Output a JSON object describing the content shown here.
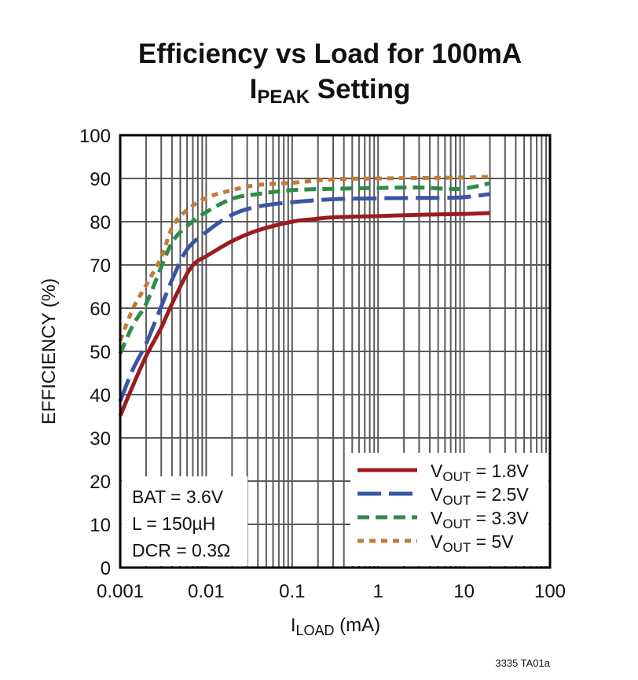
{
  "chart_data": {
    "type": "line",
    "title": {
      "line1": "Efficiency vs Load for 100mA",
      "line2_main": "I",
      "line2_sub": "PEAK",
      "line2_rest": " Setting"
    },
    "xlabel": {
      "main": "I",
      "sub": "LOAD",
      "rest": " (mA)"
    },
    "ylabel": "EFFICIENCY (%)",
    "x_scale": "log",
    "xlim": [
      0.001,
      100
    ],
    "ylim": [
      0,
      100
    ],
    "grid": true,
    "x_ticks": [
      "0.001",
      "0.01",
      "0.1",
      "1",
      "10",
      "100"
    ],
    "x_tick_values": [
      0.001,
      0.01,
      0.1,
      1,
      10,
      100
    ],
    "y_ticks": [
      "0",
      "10",
      "20",
      "30",
      "40",
      "50",
      "60",
      "70",
      "80",
      "90",
      "100"
    ],
    "legend_position": "bottom-right",
    "annotations": [
      "BAT = 3.6V",
      "L = 150µH",
      "DCR = 0.3Ω"
    ],
    "footnote": "3335 TA01a",
    "series": [
      {
        "label_main": "V",
        "label_sub": "OUT",
        "label_rest": " = 1.8V",
        "color": "#9b1c20",
        "style": "solid",
        "x": [
          0.001,
          0.0014,
          0.002,
          0.003,
          0.004,
          0.006,
          0.0077,
          0.01,
          0.02,
          0.04,
          0.1,
          0.18,
          0.3,
          1,
          3,
          10,
          20
        ],
        "y": [
          35.1,
          42,
          48.9,
          55.5,
          61,
          68,
          70.7,
          72,
          75.5,
          78,
          80,
          80.6,
          81,
          81.3,
          81.6,
          81.8,
          82
        ]
      },
      {
        "label_main": "V",
        "label_sub": "OUT",
        "label_rest": " = 2.5V",
        "color": "#3a55a6",
        "style": "long-dash",
        "x": [
          0.001,
          0.0014,
          0.002,
          0.003,
          0.0041,
          0.006,
          0.01,
          0.02,
          0.04,
          0.1,
          0.3,
          1,
          3,
          9,
          20
        ],
        "y": [
          38.5,
          45.8,
          51.8,
          60.4,
          67,
          73.6,
          77.6,
          81.6,
          83.5,
          84.5,
          85.2,
          85.4,
          85.5,
          85.6,
          86.4
        ]
      },
      {
        "label_main": "V",
        "label_sub": "OUT",
        "label_rest": " = 3.3V",
        "color": "#2e8b4a",
        "style": "dash",
        "x": [
          0.001,
          0.0014,
          0.002,
          0.003,
          0.0041,
          0.006,
          0.01,
          0.02,
          0.04,
          0.1,
          0.3,
          1,
          3,
          9,
          20
        ],
        "y": [
          49.5,
          56,
          61,
          69.5,
          75.5,
          79,
          82.2,
          85.3,
          86.4,
          87.3,
          87.6,
          87.8,
          87.9,
          87.6,
          88.9
        ]
      },
      {
        "label_main": "V",
        "label_sub": "OUT",
        "label_rest": " = 5V",
        "color": "#c47a35",
        "style": "dotted",
        "x": [
          0.001,
          0.0014,
          0.002,
          0.003,
          0.0041,
          0.006,
          0.01,
          0.02,
          0.04,
          0.1,
          0.3,
          1,
          3,
          10,
          20
        ],
        "y": [
          52.5,
          59.8,
          65.3,
          71.8,
          79,
          82.7,
          85.5,
          87.3,
          88.5,
          89,
          89.8,
          90,
          90.1,
          90.2,
          90.4
        ]
      }
    ]
  }
}
